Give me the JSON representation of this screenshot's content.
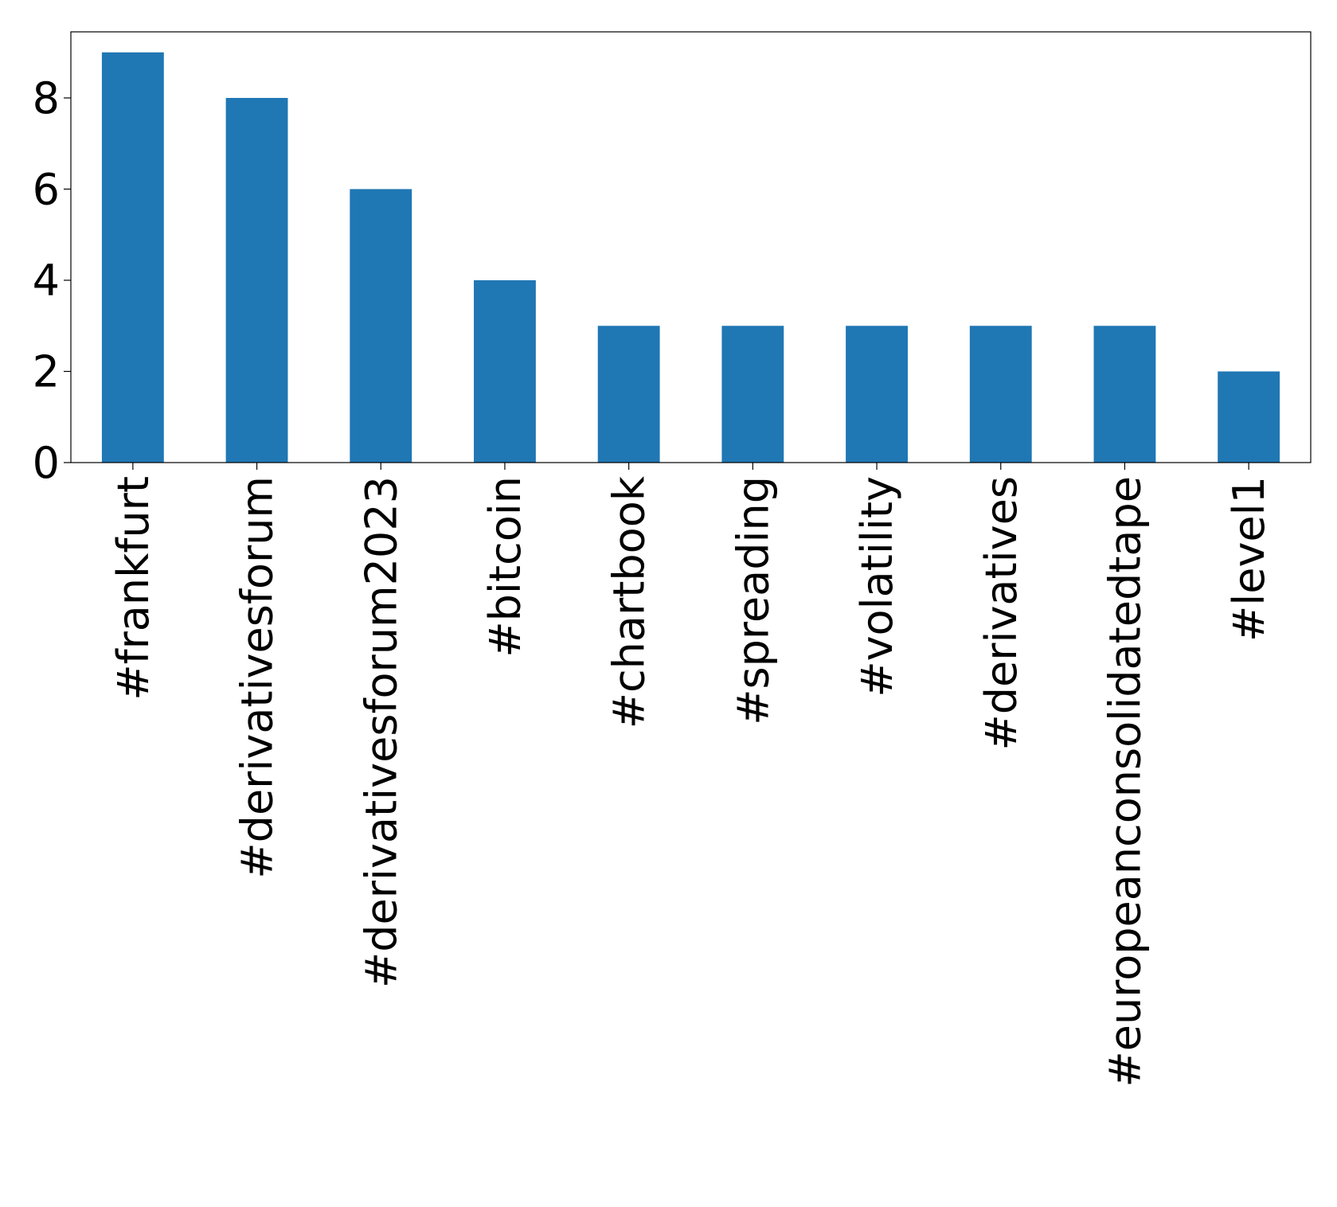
{
  "chart_data": {
    "type": "bar",
    "categories": [
      "#frankfurt",
      "#derivativesforum",
      "#derivativesforum2023",
      "#bitcoin",
      "#chartbook",
      "#spreading",
      "#volatility",
      "#derivatives",
      "#europeanconsolidatedtape",
      "#level1"
    ],
    "values": [
      9,
      8,
      6,
      4,
      3,
      3,
      3,
      3,
      3,
      2
    ],
    "color": "#1f77b4",
    "ylim": [
      0,
      9.45
    ],
    "yticks": [
      0,
      2,
      4,
      6,
      8
    ],
    "grid": false
  }
}
